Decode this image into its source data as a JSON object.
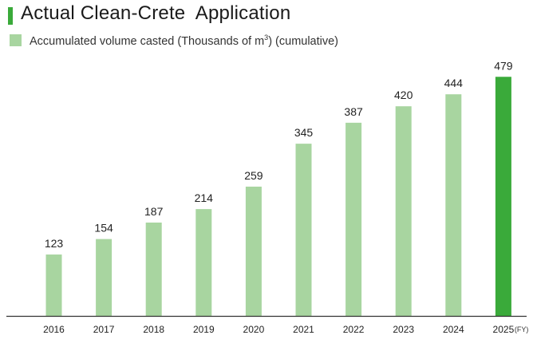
{
  "colors": {
    "accent": "#3aaa3a",
    "bar": "#a8d5a0",
    "highlight": "#3aaa3a",
    "axis": "#333333"
  },
  "title": "Actual Clean-Crete  Application",
  "chart_data": {
    "type": "bar",
    "title": "Actual Clean-Crete  Application",
    "legend": {
      "label_pre": "Accumulated volume casted (Thousands of m",
      "label_sup": "3",
      "label_post": ") (cumulative)",
      "position": "top-left"
    },
    "categories": [
      "2016",
      "2017",
      "2018",
      "2019",
      "2020",
      "2021",
      "2022",
      "2023",
      "2024",
      "2025"
    ],
    "x_unit": "(FY)",
    "series": [
      {
        "name": "Accumulated volume casted (Thousands of m3) (cumulative)",
        "values": [
          123,
          154,
          187,
          214,
          259,
          345,
          387,
          420,
          444,
          479
        ]
      }
    ],
    "highlight_category": "2025",
    "ylim": [
      0,
      500
    ],
    "grid": false,
    "y_axis_visible": false
  }
}
